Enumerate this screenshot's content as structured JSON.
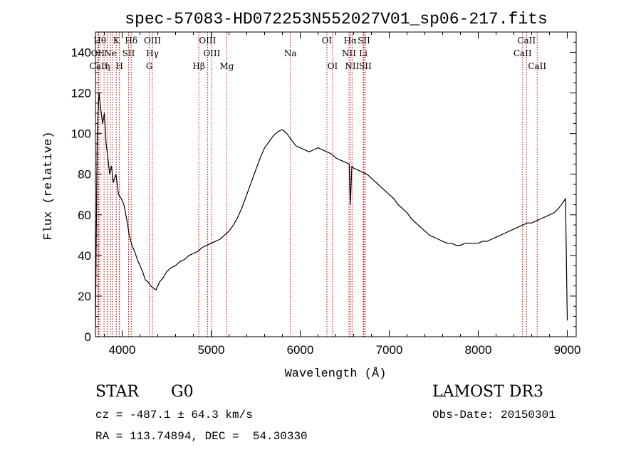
{
  "chart_data": {
    "type": "line",
    "title": "spec-57083-HD072253N552027V01_sp06-217.fits",
    "xlabel": "Wavelength (Å)",
    "ylabel": "Flux (relative)",
    "xlim": [
      3700,
      9100
    ],
    "ylim": [
      0,
      150
    ],
    "xticks": [
      4000,
      5000,
      6000,
      7000,
      8000,
      9000
    ],
    "xtick_labels": [
      "4000",
      "5000",
      "6000",
      "7000",
      "8000",
      "9000"
    ],
    "yticks": [
      0,
      20,
      40,
      60,
      80,
      100,
      120,
      140
    ],
    "ytick_labels": [
      "0",
      "20",
      "40",
      "60",
      "80",
      "100",
      "120",
      "140"
    ],
    "grid": false,
    "line_color": "#000000",
    "marker_color": "#cc0000",
    "series": [
      {
        "x": [
          3700,
          3720,
          3740,
          3760,
          3780,
          3800,
          3820,
          3840,
          3860,
          3880,
          3900,
          3930,
          3960,
          3990,
          4020,
          4050,
          4080,
          4110,
          4140,
          4170,
          4200,
          4230,
          4260,
          4290,
          4320,
          4350,
          4380,
          4420,
          4460,
          4500,
          4550,
          4600,
          4650,
          4700,
          4750,
          4800,
          4850,
          4900,
          4950,
          5000,
          5050,
          5100,
          5150,
          5200,
          5250,
          5300,
          5350,
          5400,
          5450,
          5500,
          5550,
          5600,
          5650,
          5700,
          5750,
          5800,
          5850,
          5900,
          5950,
          6000,
          6050,
          6100,
          6150,
          6200,
          6250,
          6300,
          6350,
          6400,
          6450,
          6500,
          6550,
          6563,
          6580,
          6600,
          6650,
          6700,
          6750,
          6800,
          6850,
          6900,
          6950,
          7000,
          7050,
          7100,
          7150,
          7200,
          7250,
          7300,
          7350,
          7400,
          7450,
          7500,
          7550,
          7600,
          7650,
          7700,
          7750,
          7800,
          7850,
          7900,
          7950,
          8000,
          8050,
          8100,
          8150,
          8200,
          8250,
          8300,
          8350,
          8400,
          8450,
          8500,
          8550,
          8600,
          8650,
          8700,
          8750,
          8800,
          8850,
          8900,
          8950,
          8980,
          9000
        ],
        "y": [
          5,
          100,
          120,
          112,
          105,
          110,
          95,
          88,
          80,
          84,
          76,
          80,
          70,
          68,
          65,
          58,
          50,
          45,
          42,
          38,
          35,
          32,
          28,
          27,
          25,
          24,
          23,
          27,
          29,
          32,
          34,
          35,
          37,
          38,
          40,
          41,
          42,
          44,
          45,
          46,
          47,
          48,
          50,
          52,
          55,
          59,
          64,
          70,
          76,
          82,
          88,
          93,
          96,
          99,
          101,
          102,
          100,
          97,
          94,
          93,
          92,
          91,
          92,
          93,
          92,
          91,
          90,
          88,
          87,
          86,
          85,
          65,
          84,
          83,
          82,
          81,
          80,
          78,
          76,
          74,
          72,
          70,
          68,
          65,
          63,
          61,
          58,
          56,
          54,
          52,
          50,
          49,
          48,
          47,
          46,
          46,
          45,
          45,
          46,
          46,
          46,
          46,
          47,
          47,
          48,
          49,
          50,
          51,
          52,
          53,
          54,
          55,
          56,
          56,
          57,
          58,
          59,
          60,
          61,
          63,
          66,
          68,
          8
        ]
      }
    ],
    "line_markers": [
      {
        "wavelength": 3750,
        "label": "Hθ",
        "row": 0
      },
      {
        "wavelength": 3797,
        "label": "",
        "row": 0
      },
      {
        "wavelength": 3835,
        "label": "",
        "row": 0
      },
      {
        "wavelength": 3889,
        "label": "",
        "row": 0
      },
      {
        "wavelength": 3934,
        "label": "K",
        "row": 0
      },
      {
        "wavelength": 3968,
        "label": "",
        "row": 0
      },
      {
        "wavelength": 4102,
        "label": "Hδ",
        "row": 0
      },
      {
        "wavelength": 4340,
        "label": "OIII",
        "row": 0
      },
      {
        "wavelength": 4959,
        "label": "OIII",
        "row": 0
      },
      {
        "wavelength": 6300,
        "label": "OI",
        "row": 0
      },
      {
        "wavelength": 6563,
        "label": "Hα",
        "row": 0
      },
      {
        "wavelength": 6716,
        "label": "SII",
        "row": 0
      },
      {
        "wavelength": 8542,
        "label": "CaII",
        "row": 0
      },
      {
        "wavelength": 3727,
        "label": "OII",
        "row": 1
      },
      {
        "wavelength": 3868,
        "label": "Ne",
        "row": 1
      },
      {
        "wavelength": 4072,
        "label": "SII",
        "row": 1
      },
      {
        "wavelength": 4340,
        "label": "Hγ",
        "row": 1
      },
      {
        "wavelength": 5007,
        "label": "OIII",
        "row": 1
      },
      {
        "wavelength": 5890,
        "label": "Na",
        "row": 1
      },
      {
        "wavelength": 6548,
        "label": "NII",
        "row": 1
      },
      {
        "wavelength": 6708,
        "label": "Li",
        "row": 1
      },
      {
        "wavelength": 8498,
        "label": "CaII",
        "row": 1
      },
      {
        "wavelength": 3736,
        "label": "CaII",
        "row": 2
      },
      {
        "wavelength": 3835,
        "label": "η",
        "row": 2
      },
      {
        "wavelength": 3970,
        "label": "H",
        "row": 2
      },
      {
        "wavelength": 4305,
        "label": "G",
        "row": 2
      },
      {
        "wavelength": 4861,
        "label": "Hβ",
        "row": 2
      },
      {
        "wavelength": 5175,
        "label": "Mg",
        "row": 2
      },
      {
        "wavelength": 6364,
        "label": "OI",
        "row": 2
      },
      {
        "wavelength": 6583,
        "label": "NII",
        "row": 2
      },
      {
        "wavelength": 6731,
        "label": "SII",
        "row": 2
      },
      {
        "wavelength": 8662,
        "label": "CaII",
        "row": 2
      }
    ]
  },
  "info": {
    "class_label": "STAR",
    "subclass_label": "G0",
    "survey": "LAMOST DR3",
    "redshift": "cz = -487.1 ± 64.3 km/s",
    "obs_date": "Obs-Date: 20150301",
    "coords": "RA = 113.74894, DEC =  54.30330"
  }
}
